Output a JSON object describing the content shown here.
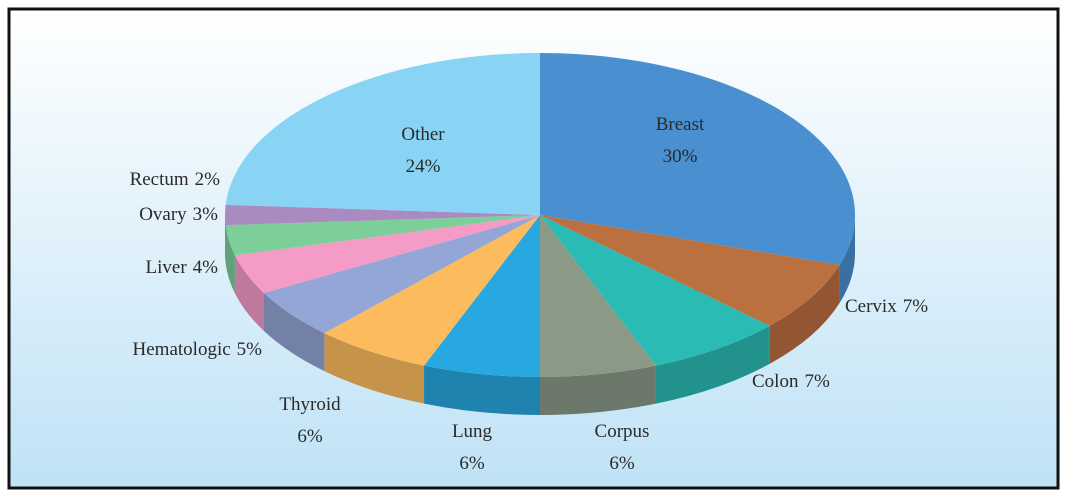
{
  "chart_data": {
    "type": "pie3d",
    "categories": [
      "Breast",
      "Cervix",
      "Colon",
      "Corpus",
      "Lung",
      "Thyroid",
      "Hematologic",
      "Liver",
      "Ovary",
      "Rectum",
      "Other"
    ],
    "values": [
      30,
      7,
      7,
      6,
      6,
      6,
      5,
      4,
      3,
      2,
      24
    ],
    "value_labels": [
      "30%",
      "7%",
      "7%",
      "6%",
      "6%",
      "6%",
      "5%",
      "4%",
      "3%",
      "2%",
      "24%"
    ],
    "colors": [
      "#4a8fcf",
      "#bb7040",
      "#2bbbb5",
      "#8a9a87",
      "#27a8e0",
      "#fcbc5e",
      "#93a6d6",
      "#f59bc8",
      "#7ccf98",
      "#a98bc2",
      "#89d3f4"
    ]
  }
}
